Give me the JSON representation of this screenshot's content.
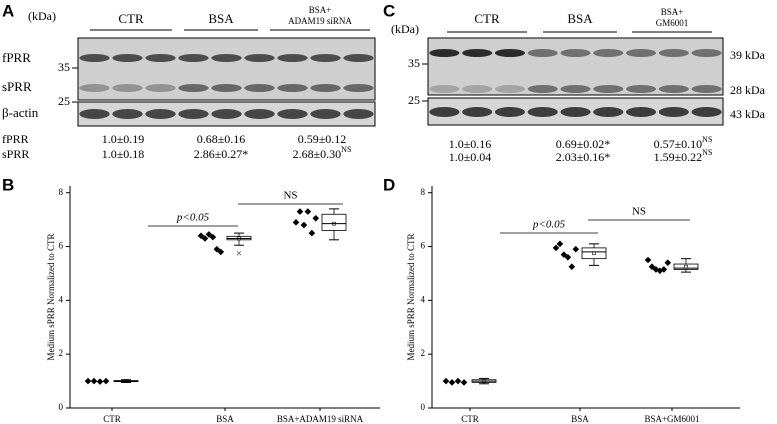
{
  "blots": [
    {
      "letter": "A",
      "unit": "(kDa)",
      "markers": [
        "35",
        "25"
      ],
      "groups": [
        [
          "CTR"
        ],
        [
          "BSA"
        ],
        [
          "BSA+",
          "ADAM19 siRNA"
        ]
      ],
      "bands": [
        "fPRR",
        "sPRR",
        "β-actin"
      ],
      "quant": [
        {
          "label": "fPRR",
          "cells": [
            {
              "text": "1.0±0.19"
            },
            {
              "text": "0.68±0.16"
            },
            {
              "text": "0.59±0.12"
            }
          ]
        },
        {
          "label": "sPRR",
          "cells": [
            {
              "text": "1.0±0.18"
            },
            {
              "text": "2.86±0.27*"
            },
            {
              "text": "2.68±0.30",
              "sup": "NS"
            }
          ]
        }
      ]
    },
    {
      "letter": "C",
      "unit": "(kDa)",
      "markers": [
        "35",
        "25"
      ],
      "groups": [
        [
          "CTR"
        ],
        [
          "BSA"
        ],
        [
          "BSA+",
          "GM6001"
        ]
      ],
      "sizes": [
        "39 kDa",
        "28 kDa",
        "43 kDa"
      ],
      "quant": [
        {
          "cells": [
            {
              "text": "1.0±0.16"
            },
            {
              "text": "0.69±0.02*"
            },
            {
              "text": "0.57±0.10",
              "sup": "NS"
            }
          ]
        },
        {
          "cells": [
            {
              "text": "1.0±0.04"
            },
            {
              "text": "2.03±0.16*"
            },
            {
              "text": "1.59±0.22",
              "sup": "NS"
            }
          ]
        }
      ]
    }
  ],
  "chart_data": [
    {
      "type": "box",
      "letter": "B",
      "ylabel": "Medium sPRR Normalized to CTR",
      "categories": [
        "CTR",
        "BSA",
        "BSA+ADAM19 siRNA"
      ],
      "points": [
        [
          1.0,
          1.0,
          0.98,
          1.0
        ],
        [
          6.4,
          6.3,
          6.45,
          6.35,
          5.9,
          5.8
        ],
        [
          6.9,
          7.3,
          6.8,
          7.3,
          6.5,
          7.05
        ]
      ],
      "boxes": [
        {
          "low": 0.95,
          "q1": 0.98,
          "median": 1.0,
          "q3": 1.02,
          "high": 1.05,
          "mean": 1.0
        },
        {
          "low": 6.05,
          "q1": 6.25,
          "median": 6.3,
          "q3": 6.38,
          "high": 6.5,
          "mean": 6.3,
          "outliers": [
            5.75
          ]
        },
        {
          "low": 6.25,
          "q1": 6.6,
          "median": 6.85,
          "q3": 7.2,
          "high": 7.4,
          "mean": 6.85
        }
      ],
      "ylim": [
        0,
        8.25
      ],
      "yticks": [
        0,
        2,
        4,
        6,
        8
      ],
      "annotations": [
        "p<0.05",
        "NS"
      ],
      "color": "#000000"
    },
    {
      "type": "box",
      "letter": "D",
      "ylabel": "Medium sPRR Normalized to CTR",
      "categories": [
        "CTR",
        "BSA",
        "BSA+GM6001"
      ],
      "points": [
        [
          1.0,
          0.95,
          1.0,
          0.95
        ],
        [
          5.95,
          6.1,
          5.7,
          5.6,
          5.25,
          5.9
        ],
        [
          5.5,
          5.25,
          5.15,
          5.1,
          5.15,
          5.4
        ]
      ],
      "boxes": [
        {
          "low": 0.9,
          "q1": 0.95,
          "median": 1.0,
          "q3": 1.05,
          "high": 1.1,
          "mean": 1.0
        },
        {
          "low": 5.3,
          "q1": 5.55,
          "median": 5.8,
          "q3": 5.95,
          "high": 6.1,
          "mean": 5.75
        },
        {
          "low": 5.05,
          "q1": 5.15,
          "median": 5.2,
          "q3": 5.35,
          "high": 5.55,
          "mean": 5.25
        }
      ],
      "ylim": [
        0,
        8.25
      ],
      "yticks": [
        0,
        2,
        4,
        6,
        8
      ],
      "annotations": [
        "p<0.05",
        "NS"
      ],
      "color": "#000000"
    }
  ]
}
